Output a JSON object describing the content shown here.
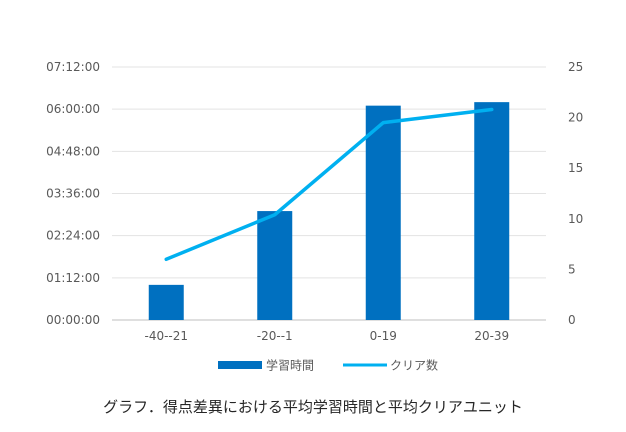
{
  "chart_data": {
    "type": "bar+line",
    "categories": [
      "-40--21",
      "-20--1",
      "0-19",
      "20-39"
    ],
    "series": [
      {
        "name": "学習時間",
        "type": "bar",
        "axis": "left",
        "color": "#0070C0",
        "values_seconds": [
          3600,
          11160,
          21960,
          22320
        ]
      },
      {
        "name": "クリア数",
        "type": "line",
        "axis": "right",
        "color": "#00B0F0",
        "values": [
          6,
          10.4,
          19.5,
          20.8
        ]
      }
    ],
    "y_left": {
      "min": 0,
      "max": 25920,
      "step": 4320,
      "tick_labels": [
        "00:00:00",
        "01:12:00",
        "02:24:00",
        "03:36:00",
        "04:48:00",
        "06:00:00",
        "07:12:00"
      ]
    },
    "y_right": {
      "min": 0,
      "max": 25,
      "step": 5,
      "tick_labels": [
        "0",
        "5",
        "10",
        "15",
        "20",
        "25"
      ]
    },
    "grid": true,
    "legend": "bottom",
    "title": ""
  },
  "caption": "グラフ．得点差異における平均学習時間と平均クリアユニット"
}
